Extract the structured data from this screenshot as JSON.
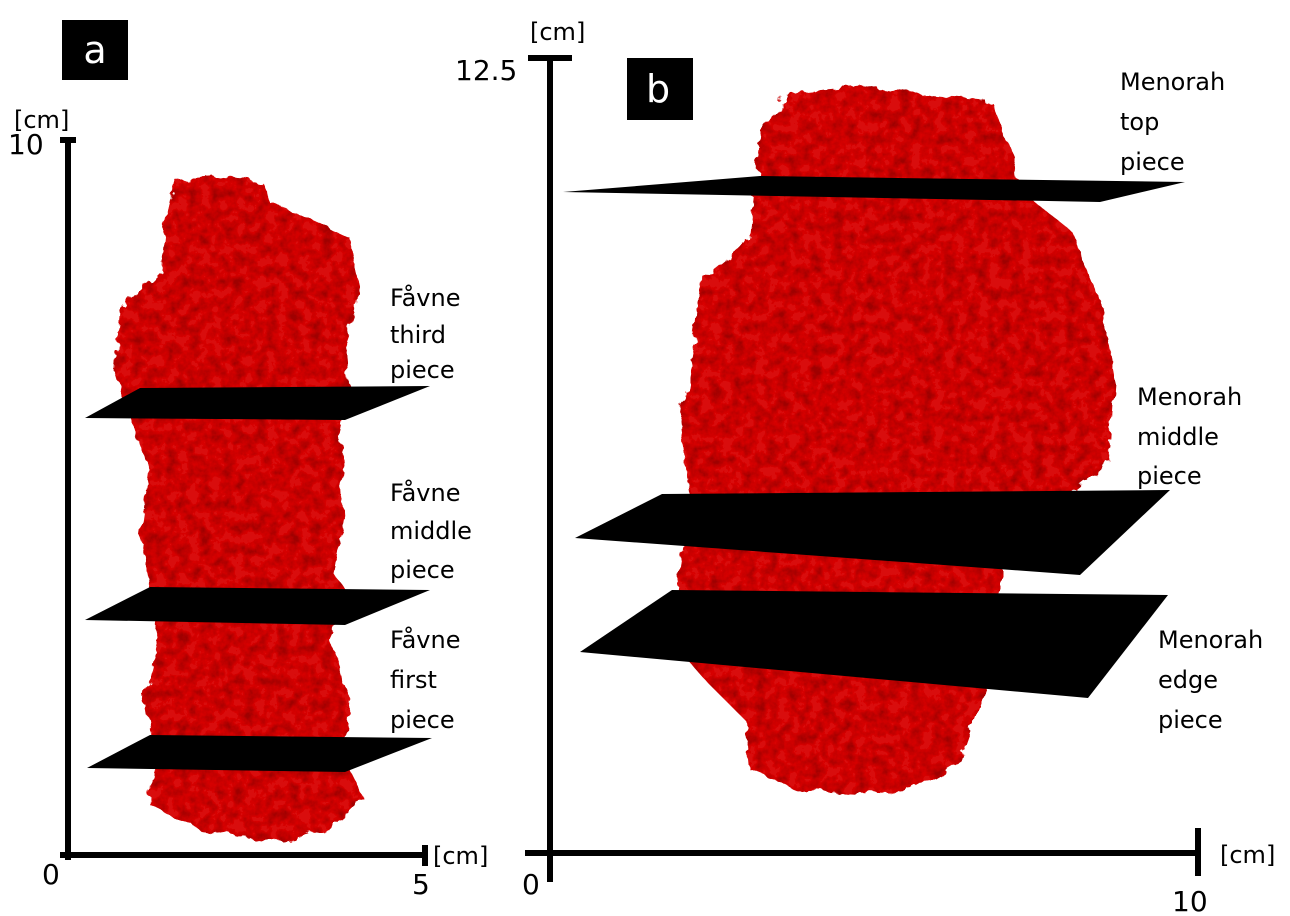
{
  "panels": [
    {
      "label": "a",
      "y_unit": "[cm]",
      "y_max": "10",
      "origin": "0",
      "x_max": "5",
      "x_unit": "[cm]",
      "slices": [
        {
          "lines": [
            "Fåvne",
            "third",
            "piece"
          ]
        },
        {
          "lines": [
            "Fåvne",
            "middle",
            "piece"
          ]
        },
        {
          "lines": [
            "Fåvne",
            "first",
            "piece"
          ]
        }
      ]
    },
    {
      "label": "b",
      "y_unit": "[cm]",
      "y_max": "12.5",
      "origin": "0",
      "x_max": "10",
      "x_unit": "[cm]",
      "slices": [
        {
          "lines": [
            "Menorah",
            "top",
            "piece"
          ]
        },
        {
          "lines": [
            "Menorah",
            "middle",
            "piece"
          ]
        },
        {
          "lines": [
            "Menorah",
            "edge",
            "piece"
          ]
        }
      ]
    }
  ]
}
